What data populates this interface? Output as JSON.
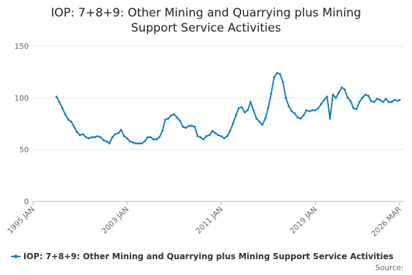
{
  "chart_data": {
    "type": "line",
    "title": "IOP: 7+8+9: Other Mining and Quarrying plus Mining Support Service Activities",
    "source": "Source:",
    "x": [
      1997.0,
      1997.25,
      1997.5,
      1997.75,
      1998.0,
      1998.25,
      1998.5,
      1998.75,
      1999.0,
      1999.25,
      1999.5,
      1999.75,
      2000.0,
      2000.25,
      2000.5,
      2000.75,
      2001.0,
      2001.25,
      2001.5,
      2001.75,
      2002.0,
      2002.25,
      2002.5,
      2002.75,
      2003.0,
      2003.25,
      2003.5,
      2003.75,
      2004.0,
      2004.25,
      2004.5,
      2004.75,
      2005.0,
      2005.25,
      2005.5,
      2005.75,
      2006.0,
      2006.25,
      2006.5,
      2006.75,
      2007.0,
      2007.25,
      2007.5,
      2007.75,
      2008.0,
      2008.25,
      2008.5,
      2008.75,
      2009.0,
      2009.25,
      2009.5,
      2009.75,
      2010.0,
      2010.25,
      2010.5,
      2010.75,
      2011.0,
      2011.25,
      2011.5,
      2011.75,
      2012.0,
      2012.25,
      2012.5,
      2012.75,
      2013.0,
      2013.25,
      2013.5,
      2013.75,
      2014.0,
      2014.25,
      2014.5,
      2014.75,
      2015.0,
      2015.25,
      2015.5,
      2015.75,
      2016.0,
      2016.25,
      2016.5,
      2016.75,
      2017.0,
      2017.25,
      2017.5,
      2017.75,
      2018.0,
      2018.25,
      2018.5,
      2018.75,
      2019.0,
      2019.25,
      2019.5,
      2019.75,
      2020.0,
      2020.25,
      2020.5,
      2020.75,
      2021.0,
      2021.25,
      2021.5,
      2021.75,
      2022.0,
      2022.25,
      2022.5,
      2022.75,
      2023.0,
      2023.25,
      2023.5,
      2023.75,
      2024.0,
      2024.25,
      2024.5,
      2024.75,
      2025.0,
      2025.25,
      2025.5,
      2025.75,
      2026.0,
      2026.17
    ],
    "series": [
      {
        "name": "IOP: 7+8+9: Other Mining and Quarrying plus Mining Support Service Activities",
        "color": "#0f7bbd",
        "values": [
          101,
          96,
          90,
          84,
          79,
          77,
          72,
          67,
          64,
          65,
          62,
          61,
          62,
          62,
          63,
          62,
          59,
          58,
          56,
          62,
          65,
          66,
          69,
          63,
          61,
          58,
          57,
          56,
          56,
          56,
          58,
          62,
          62,
          60,
          60,
          62,
          68,
          79,
          80,
          83,
          84,
          81,
          78,
          72,
          71,
          73,
          73,
          72,
          63,
          62,
          60,
          63,
          64,
          68,
          66,
          64,
          63,
          61,
          63,
          68,
          75,
          83,
          90,
          91,
          86,
          88,
          96,
          88,
          80,
          77,
          74,
          80,
          90,
          104,
          120,
          124,
          123,
          115,
          100,
          92,
          87,
          85,
          81,
          80,
          83,
          88,
          87,
          88,
          88,
          90,
          94,
          98,
          101,
          80,
          103,
          100,
          105,
          110,
          108,
          100,
          97,
          90,
          89,
          96,
          100,
          103,
          102,
          97,
          96,
          99,
          98,
          96,
          99,
          96,
          96,
          98,
          97,
          98
        ]
      }
    ],
    "xlim": [
      1995,
      2026.17
    ],
    "xticks": [
      {
        "value": 1995,
        "label": "1995 JAN"
      },
      {
        "value": 2003,
        "label": "2003 JAN"
      },
      {
        "value": 2011,
        "label": "2011 JAN"
      },
      {
        "value": 2019,
        "label": "2019 JAN"
      },
      {
        "value": 2026.17,
        "label": "2026 MAR"
      }
    ],
    "ylim": [
      0,
      150
    ],
    "yticks": [
      0,
      50,
      100,
      150
    ],
    "grid": true
  }
}
